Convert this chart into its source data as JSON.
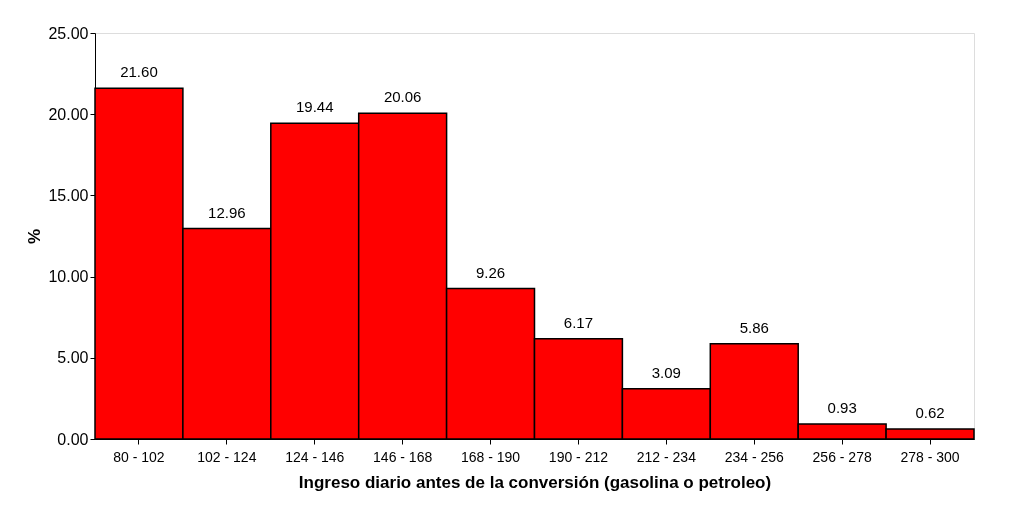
{
  "chart_data": {
    "type": "bar",
    "xlabel": "Ingreso diario antes de la conversión (gasolina o petroleo)",
    "ylabel": "%",
    "categories": [
      "80 - 102",
      "102 - 124",
      "124 - 146",
      "146 - 168",
      "168 - 190",
      "190 - 212",
      "212 - 234",
      "234 - 256",
      "256 - 278",
      "278 - 300"
    ],
    "values": [
      21.6,
      12.96,
      19.44,
      20.06,
      9.26,
      6.17,
      3.09,
      5.86,
      0.93,
      0.62
    ],
    "value_labels": [
      "21.60",
      "12.96",
      "19.44",
      "20.06",
      "9.26",
      "6.17",
      "3.09",
      "5.86",
      "0.93",
      "0.62"
    ],
    "color": "#ff0000",
    "ylim": [
      0,
      25
    ],
    "yticks": [
      {
        "value": 0,
        "label": "0.00"
      },
      {
        "value": 5,
        "label": "5.00"
      },
      {
        "value": 10,
        "label": "10.00"
      },
      {
        "value": 15,
        "label": "15.00"
      },
      {
        "value": 20,
        "label": "20.00"
      },
      {
        "value": 25,
        "label": "25.00"
      }
    ],
    "grid": false
  }
}
